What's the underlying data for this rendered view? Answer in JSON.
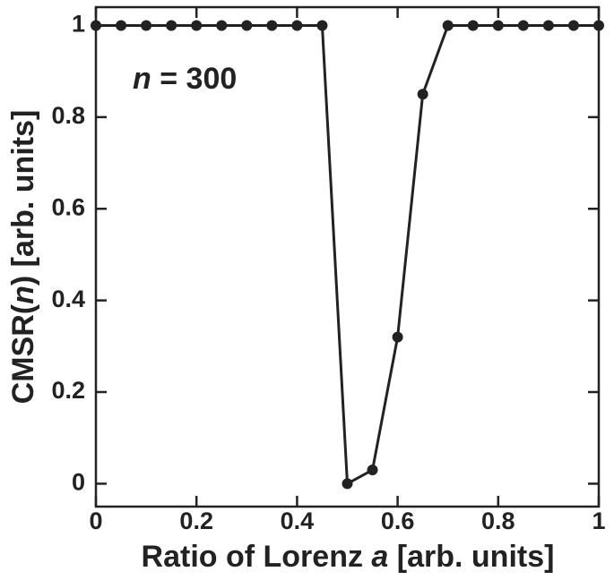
{
  "chart_data": {
    "type": "line",
    "xlabel": [
      "Ratio of Lorenz ",
      "a",
      " [arb. units]"
    ],
    "ylabel": [
      "CMSR(",
      "n",
      ") [arb. units]"
    ],
    "annotation": [
      "n",
      " = 300"
    ],
    "x": [
      0,
      0.05,
      0.1,
      0.15,
      0.2,
      0.25,
      0.3,
      0.35,
      0.4,
      0.45,
      0.5,
      0.55,
      0.6,
      0.65,
      0.7,
      0.75,
      0.8,
      0.85,
      0.9,
      0.95,
      1
    ],
    "series": [
      {
        "color": "#222222",
        "values": [
          1,
          1,
          1,
          1,
          1,
          1,
          1,
          1,
          1,
          1,
          0,
          0.03,
          0.32,
          0.85,
          1,
          1,
          1,
          1,
          1,
          1,
          1
        ]
      }
    ],
    "xlim": [
      0,
      1
    ],
    "ylim": [
      -0.05,
      1.04
    ],
    "xticks": [
      0,
      0.2,
      0.4,
      0.6,
      0.8,
      1
    ],
    "yticks": [
      0,
      0.2,
      0.4,
      0.6,
      0.8,
      1
    ],
    "grid": false
  }
}
